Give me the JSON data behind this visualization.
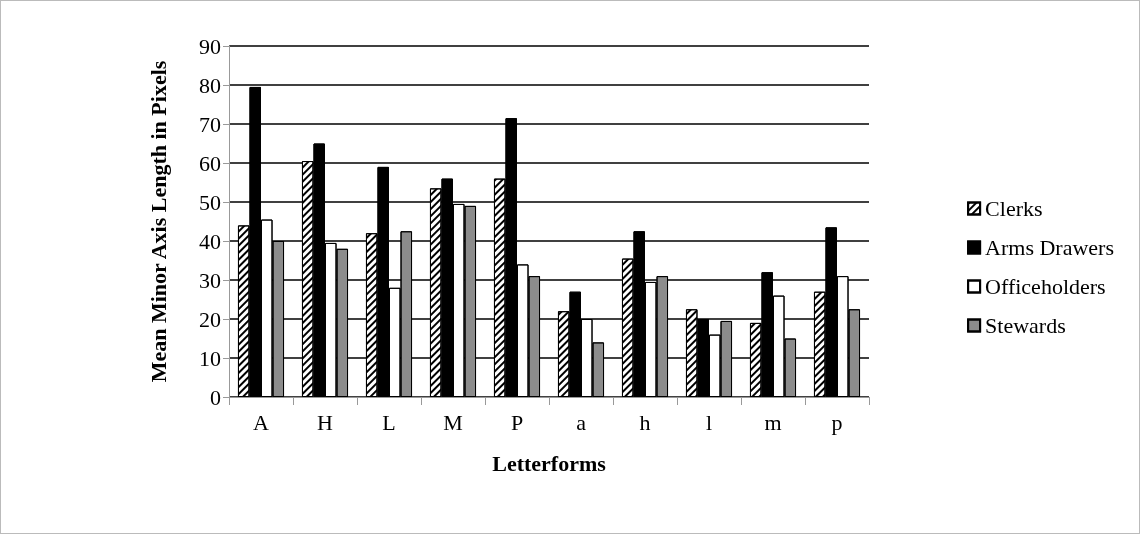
{
  "chart_data": {
    "type": "bar",
    "xlabel": "Letterforms",
    "ylabel": "Mean Minor Axis Length in Pixels",
    "categories": [
      "A",
      "H",
      "L",
      "M",
      "P",
      "a",
      "h",
      "l",
      "m",
      "p"
    ],
    "series": [
      {
        "name": "Clerks",
        "color": "#ffffff",
        "values": [
          44,
          60.5,
          42,
          53.5,
          56,
          22,
          35.5,
          22.5,
          19,
          27
        ]
      },
      {
        "name": "Arms Drawers",
        "color": "#000000",
        "values": [
          79.5,
          65,
          59,
          56,
          71.5,
          27,
          42.5,
          20,
          32,
          43.5
        ]
      },
      {
        "name": "Officeholders",
        "color": "#ffffff",
        "values": [
          45.5,
          39.5,
          28,
          49.5,
          34,
          20,
          29.5,
          16,
          26,
          31
        ]
      },
      {
        "name": "Stewards",
        "color": "#8c8c8c",
        "values": [
          40,
          38,
          42.5,
          49,
          31,
          14,
          31,
          19.5,
          15,
          22.5
        ]
      }
    ],
    "ylim": [
      0,
      90
    ],
    "yticks": [
      0,
      10,
      20,
      30,
      40,
      50,
      60,
      70,
      80,
      90
    ],
    "grid": "y",
    "legend": "right"
  }
}
